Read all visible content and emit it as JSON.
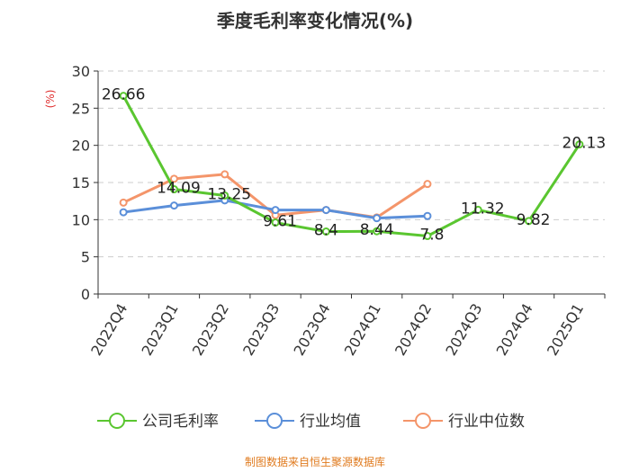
{
  "colors": {
    "company": "#5ac630",
    "industry_avg": "#5b8fd9",
    "industry_median": "#f4956a",
    "ylabel": "#e03030",
    "source": "#e07b1f",
    "grid": "#cccccc",
    "axis": "#333333"
  },
  "source_text": "制图数据来自恒生聚源数据库",
  "chart_data": {
    "type": "line",
    "title": "季度毛利率变化情况(%)",
    "xlabel": "",
    "ylabel": "(%)",
    "ylim": [
      0,
      30
    ],
    "yticks": [
      0,
      5,
      10,
      15,
      20,
      25,
      30
    ],
    "grid": "horizontal dashed",
    "legend_position": "bottom",
    "categories": [
      "2022Q4",
      "2023Q1",
      "2023Q2",
      "2023Q3",
      "2023Q4",
      "2024Q1",
      "2024Q2",
      "2024Q3",
      "2024Q4",
      "2025Q1"
    ],
    "series": [
      {
        "name": "公司毛利率",
        "color_key": "company",
        "values": [
          26.66,
          14.09,
          13.25,
          9.61,
          8.4,
          8.44,
          7.8,
          11.32,
          9.82,
          20.13
        ],
        "labels": [
          "26.66",
          "14.09",
          "13.25",
          "9.61",
          "8.4",
          "8.44",
          "7.8",
          "11.32",
          "9.82",
          "20.13"
        ]
      },
      {
        "name": "行业均值",
        "color_key": "industry_avg",
        "values": [
          11.0,
          11.9,
          12.6,
          11.3,
          11.3,
          10.2,
          10.5,
          null,
          null,
          null
        ]
      },
      {
        "name": "行业中位数",
        "color_key": "industry_median",
        "values": [
          12.3,
          15.5,
          16.1,
          10.6,
          11.3,
          10.3,
          14.8,
          null,
          null,
          null
        ]
      }
    ]
  }
}
